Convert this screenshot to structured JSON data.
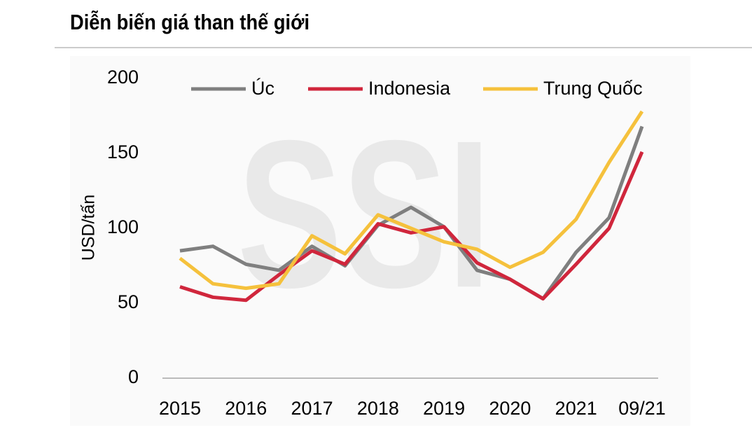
{
  "chart_data": {
    "type": "line",
    "title": "Diễn biến giá than thế giới",
    "watermark": "SSI",
    "y_label": "USD/tấn",
    "categories": [
      "2015",
      null,
      "2016",
      null,
      "2017",
      null,
      "2018",
      null,
      "2019",
      null,
      "2020",
      null,
      "2021",
      null,
      "09/21"
    ],
    "series": [
      {
        "name": "Úc",
        "color": "#7f7f7f",
        "values": [
          85,
          88,
          76,
          72,
          88,
          75,
          102,
          114,
          101,
          72,
          66,
          53,
          84,
          107,
          168
        ]
      },
      {
        "name": "Indonesia",
        "color": "#d0263c",
        "values": [
          61,
          54,
          52,
          69,
          85,
          76,
          103,
          97,
          101,
          77,
          66,
          53,
          76,
          100,
          151
        ]
      },
      {
        "name": "Trung Quốc",
        "color": "#f5c13c",
        "values": [
          80,
          63,
          60,
          63,
          95,
          83,
          109,
          100,
          91,
          86,
          74,
          84,
          106,
          144,
          178
        ]
      }
    ],
    "ylim": [
      0,
      200
    ],
    "yticks": [
      0,
      50,
      100,
      150,
      200
    ],
    "grid": false,
    "legend": "top"
  }
}
